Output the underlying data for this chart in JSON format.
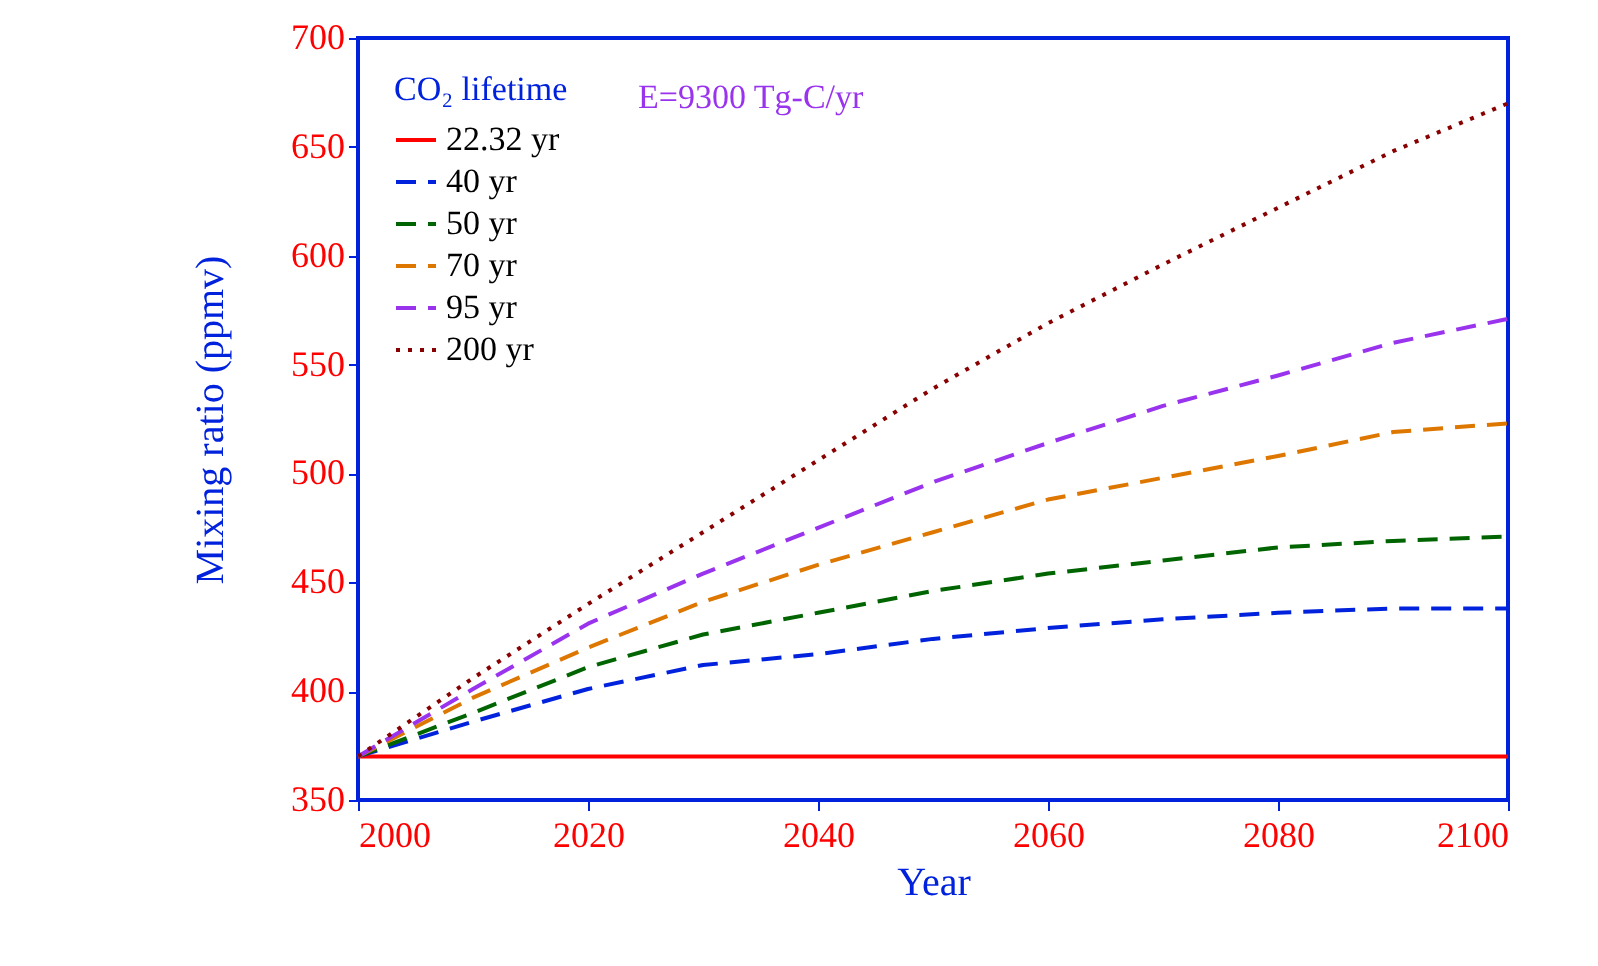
{
  "chart_data": {
    "type": "line",
    "xlabel": "Year",
    "ylabel": "Mixing ratio (ppmv)",
    "legend_title": "CO₂ lifetime",
    "annotations": [
      "E=9300 Tg-C/yr"
    ],
    "x": [
      2000,
      2010,
      2020,
      2030,
      2040,
      2050,
      2060,
      2070,
      2080,
      2090,
      2100
    ],
    "series": [
      {
        "name": "22.32 yr",
        "color": "#ff0000",
        "line_style": "solid",
        "values": [
          370,
          370,
          370,
          370,
          370,
          370,
          370,
          370,
          370,
          370,
          370
        ]
      },
      {
        "name": "40 yr",
        "color": "#0022dd",
        "line_style": "dashed",
        "values": [
          370,
          386,
          401,
          412,
          417,
          424,
          429,
          433,
          436,
          438,
          438
        ]
      },
      {
        "name": "50 yr",
        "color": "#006400",
        "line_style": "dashed",
        "values": [
          370,
          390,
          411,
          426,
          436,
          446,
          454,
          460,
          466,
          469,
          471
        ]
      },
      {
        "name": "70 yr",
        "color": "#dd7700",
        "line_style": "dashed",
        "values": [
          370,
          397,
          420,
          441,
          458,
          473,
          488,
          498,
          508,
          519,
          523
        ]
      },
      {
        "name": "95 yr",
        "color": "#9933ee",
        "line_style": "dashed",
        "values": [
          370,
          401,
          431,
          454,
          475,
          496,
          514,
          531,
          545,
          560,
          571
        ]
      },
      {
        "name": "200 yr",
        "color": "#880000",
        "line_style": "dotted",
        "values": [
          370,
          406,
          440,
          473,
          506,
          539,
          569,
          596,
          622,
          648,
          670
        ]
      }
    ],
    "xlim": [
      2000,
      2100
    ],
    "xticks": [
      2000,
      2020,
      2040,
      2060,
      2080,
      2100
    ],
    "ylim": [
      350,
      700
    ],
    "yticks": [
      350,
      400,
      450,
      500,
      550,
      600,
      650,
      700
    ],
    "grid": false,
    "legend": "top left",
    "marker": "none"
  }
}
